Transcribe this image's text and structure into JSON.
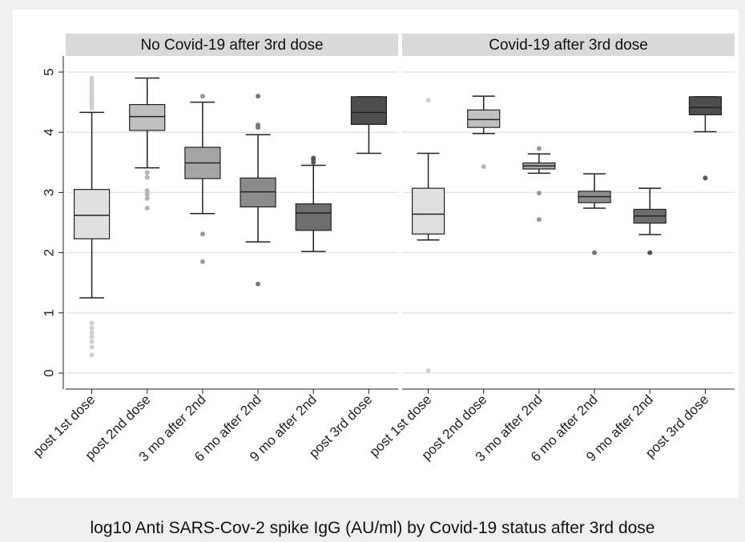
{
  "chart_data": {
    "type": "boxplot",
    "caption": "log10 Anti SARS-Cov-2 spike IgG (AU/ml) by Covid-19 status after 3rd dose",
    "categories": [
      "post 1st dose",
      "post 2nd dose",
      "3 mo after 2nd",
      "6 mo after 2nd",
      "9 mo after 2nd",
      "post 3rd dose"
    ],
    "ylim": [
      -0.25,
      5.25
    ],
    "yticks": [
      "0",
      "1",
      "2",
      "3",
      "4",
      "5"
    ],
    "grid": true,
    "box_colors": [
      "#e0e0e0",
      "#c0c0c0",
      "#a5a5a5",
      "#8c8c8c",
      "#6e6e6e",
      "#4d4d4d"
    ],
    "panels": [
      {
        "title": "No Covid-19 after 3rd dose",
        "boxes": [
          {
            "category": "post 1st dose",
            "whisker_low": 1.25,
            "q1": 2.23,
            "median": 2.62,
            "q3": 3.05,
            "whisker_high": 4.33,
            "outliers": [
              0.3,
              0.43,
              0.52,
              0.6,
              0.67,
              0.75,
              0.83,
              4.4,
              4.45,
              4.5,
              4.55,
              4.6,
              4.65,
              4.7,
              4.75,
              4.8,
              4.85,
              4.9
            ]
          },
          {
            "category": "post 2nd dose",
            "whisker_low": 3.41,
            "q1": 4.03,
            "median": 4.26,
            "q3": 4.46,
            "whisker_high": 4.9,
            "outliers": [
              2.74,
              2.9,
              2.97,
              3.03,
              3.25,
              3.33
            ]
          },
          {
            "category": "3 mo after 2nd",
            "whisker_low": 2.65,
            "q1": 3.23,
            "median": 3.49,
            "q3": 3.75,
            "whisker_high": 4.5,
            "outliers": [
              1.85,
              2.31,
              4.6
            ]
          },
          {
            "category": "6 mo after 2nd",
            "whisker_low": 2.18,
            "q1": 2.76,
            "median": 3.01,
            "q3": 3.24,
            "whisker_high": 3.96,
            "outliers": [
              1.48,
              4.08,
              4.12,
              4.6
            ]
          },
          {
            "category": "9 mo after 2nd",
            "whisker_low": 2.02,
            "q1": 2.37,
            "median": 2.66,
            "q3": 2.81,
            "whisker_high": 3.45,
            "outliers": [
              3.5,
              3.55,
              3.57
            ]
          },
          {
            "category": "post 3rd dose",
            "whisker_low": 3.65,
            "q1": 4.13,
            "median": 4.33,
            "q3": 4.59,
            "whisker_high": 4.59,
            "outliers": []
          }
        ]
      },
      {
        "title": "Covid-19 after 3rd dose",
        "boxes": [
          {
            "category": "post 1st dose",
            "whisker_low": 2.21,
            "q1": 2.31,
            "median": 2.64,
            "q3": 3.07,
            "whisker_high": 3.65,
            "outliers": [
              0.04,
              4.53
            ]
          },
          {
            "category": "post 2nd dose",
            "whisker_low": 3.98,
            "q1": 4.08,
            "median": 4.21,
            "q3": 4.37,
            "whisker_high": 4.6,
            "outliers": [
              3.43
            ]
          },
          {
            "category": "3 mo after 2nd",
            "whisker_low": 3.32,
            "q1": 3.39,
            "median": 3.44,
            "q3": 3.49,
            "whisker_high": 3.64,
            "outliers": [
              2.55,
              2.99,
              3.73
            ]
          },
          {
            "category": "6 mo after 2nd",
            "whisker_low": 2.74,
            "q1": 2.83,
            "median": 2.93,
            "q3": 3.02,
            "whisker_high": 3.31,
            "outliers": [
              2.0
            ]
          },
          {
            "category": "9 mo after 2nd",
            "whisker_low": 2.3,
            "q1": 2.49,
            "median": 2.61,
            "q3": 2.72,
            "whisker_high": 3.07,
            "outliers": [
              2.0
            ]
          },
          {
            "category": "post 3rd dose",
            "whisker_low": 4.01,
            "q1": 4.29,
            "median": 4.41,
            "q3": 4.59,
            "whisker_high": 4.59,
            "outliers": [
              3.24
            ]
          }
        ]
      }
    ]
  }
}
